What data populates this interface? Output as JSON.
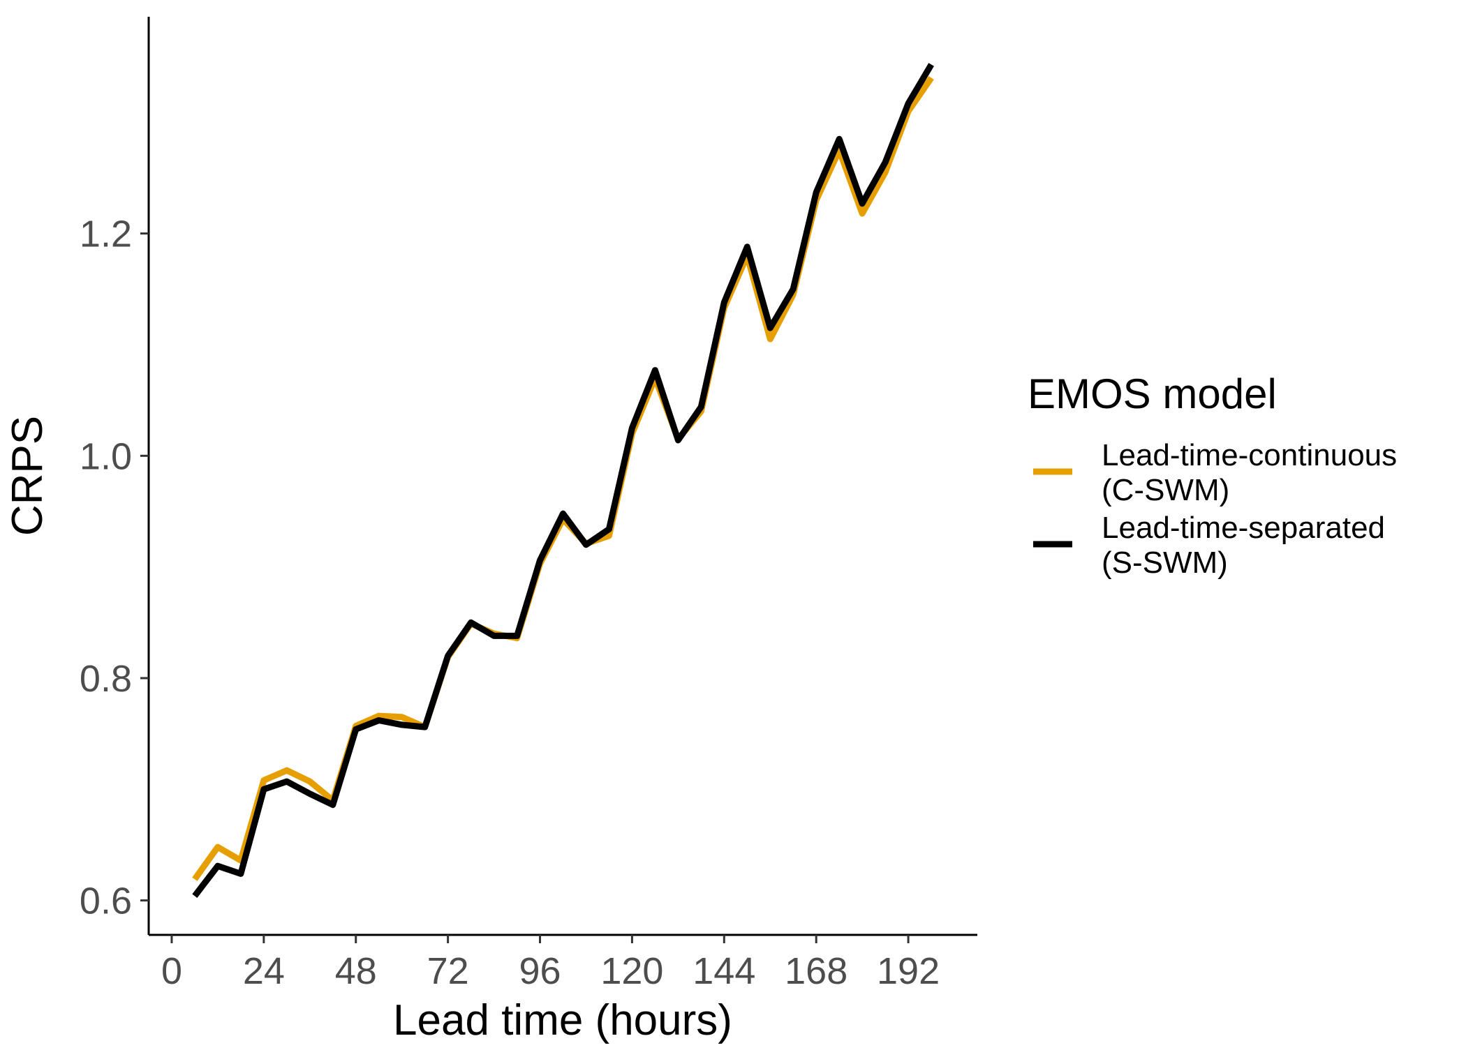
{
  "chart_data": {
    "type": "line",
    "title": "",
    "xlabel": "Lead time (hours)",
    "ylabel": "CRPS",
    "xlim": [
      -6,
      210
    ],
    "ylim": [
      0.569,
      1.395
    ],
    "x_ticks": [
      0,
      24,
      48,
      72,
      96,
      120,
      144,
      168,
      192
    ],
    "y_ticks": [
      0.6,
      0.8,
      1.0,
      1.2
    ],
    "y_tick_labels": [
      "0.6",
      "0.8",
      "1.0",
      "1.2"
    ],
    "grid": false,
    "legend": {
      "title": "EMOS model",
      "position": "right"
    },
    "x": [
      6,
      12,
      18,
      24,
      30,
      36,
      42,
      48,
      54,
      60,
      66,
      72,
      78,
      84,
      90,
      96,
      102,
      108,
      114,
      120,
      126,
      132,
      138,
      144,
      150,
      156,
      162,
      168,
      174,
      180,
      186,
      192,
      198
    ],
    "series": [
      {
        "name": "Lead-time-continuous",
        "name_line2": "(C-SWM)",
        "color": "#E69F00",
        "values": [
          0.619,
          0.648,
          0.636,
          0.708,
          0.717,
          0.707,
          0.69,
          0.757,
          0.766,
          0.765,
          0.756,
          0.819,
          0.849,
          0.84,
          0.836,
          0.903,
          0.943,
          0.921,
          0.928,
          1.02,
          1.07,
          1.015,
          1.04,
          1.133,
          1.18,
          1.105,
          1.145,
          1.23,
          1.275,
          1.218,
          1.255,
          1.31,
          1.34
        ]
      },
      {
        "name": "Lead-time-separated",
        "name_line2": "(S-SWM)",
        "color": "#000000",
        "values": [
          0.604,
          0.631,
          0.624,
          0.7,
          0.707,
          0.696,
          0.686,
          0.754,
          0.762,
          0.758,
          0.756,
          0.82,
          0.85,
          0.838,
          0.838,
          0.906,
          0.948,
          0.92,
          0.934,
          1.025,
          1.077,
          1.014,
          1.044,
          1.138,
          1.188,
          1.115,
          1.15,
          1.237,
          1.285,
          1.227,
          1.264,
          1.317,
          1.352
        ]
      }
    ]
  }
}
